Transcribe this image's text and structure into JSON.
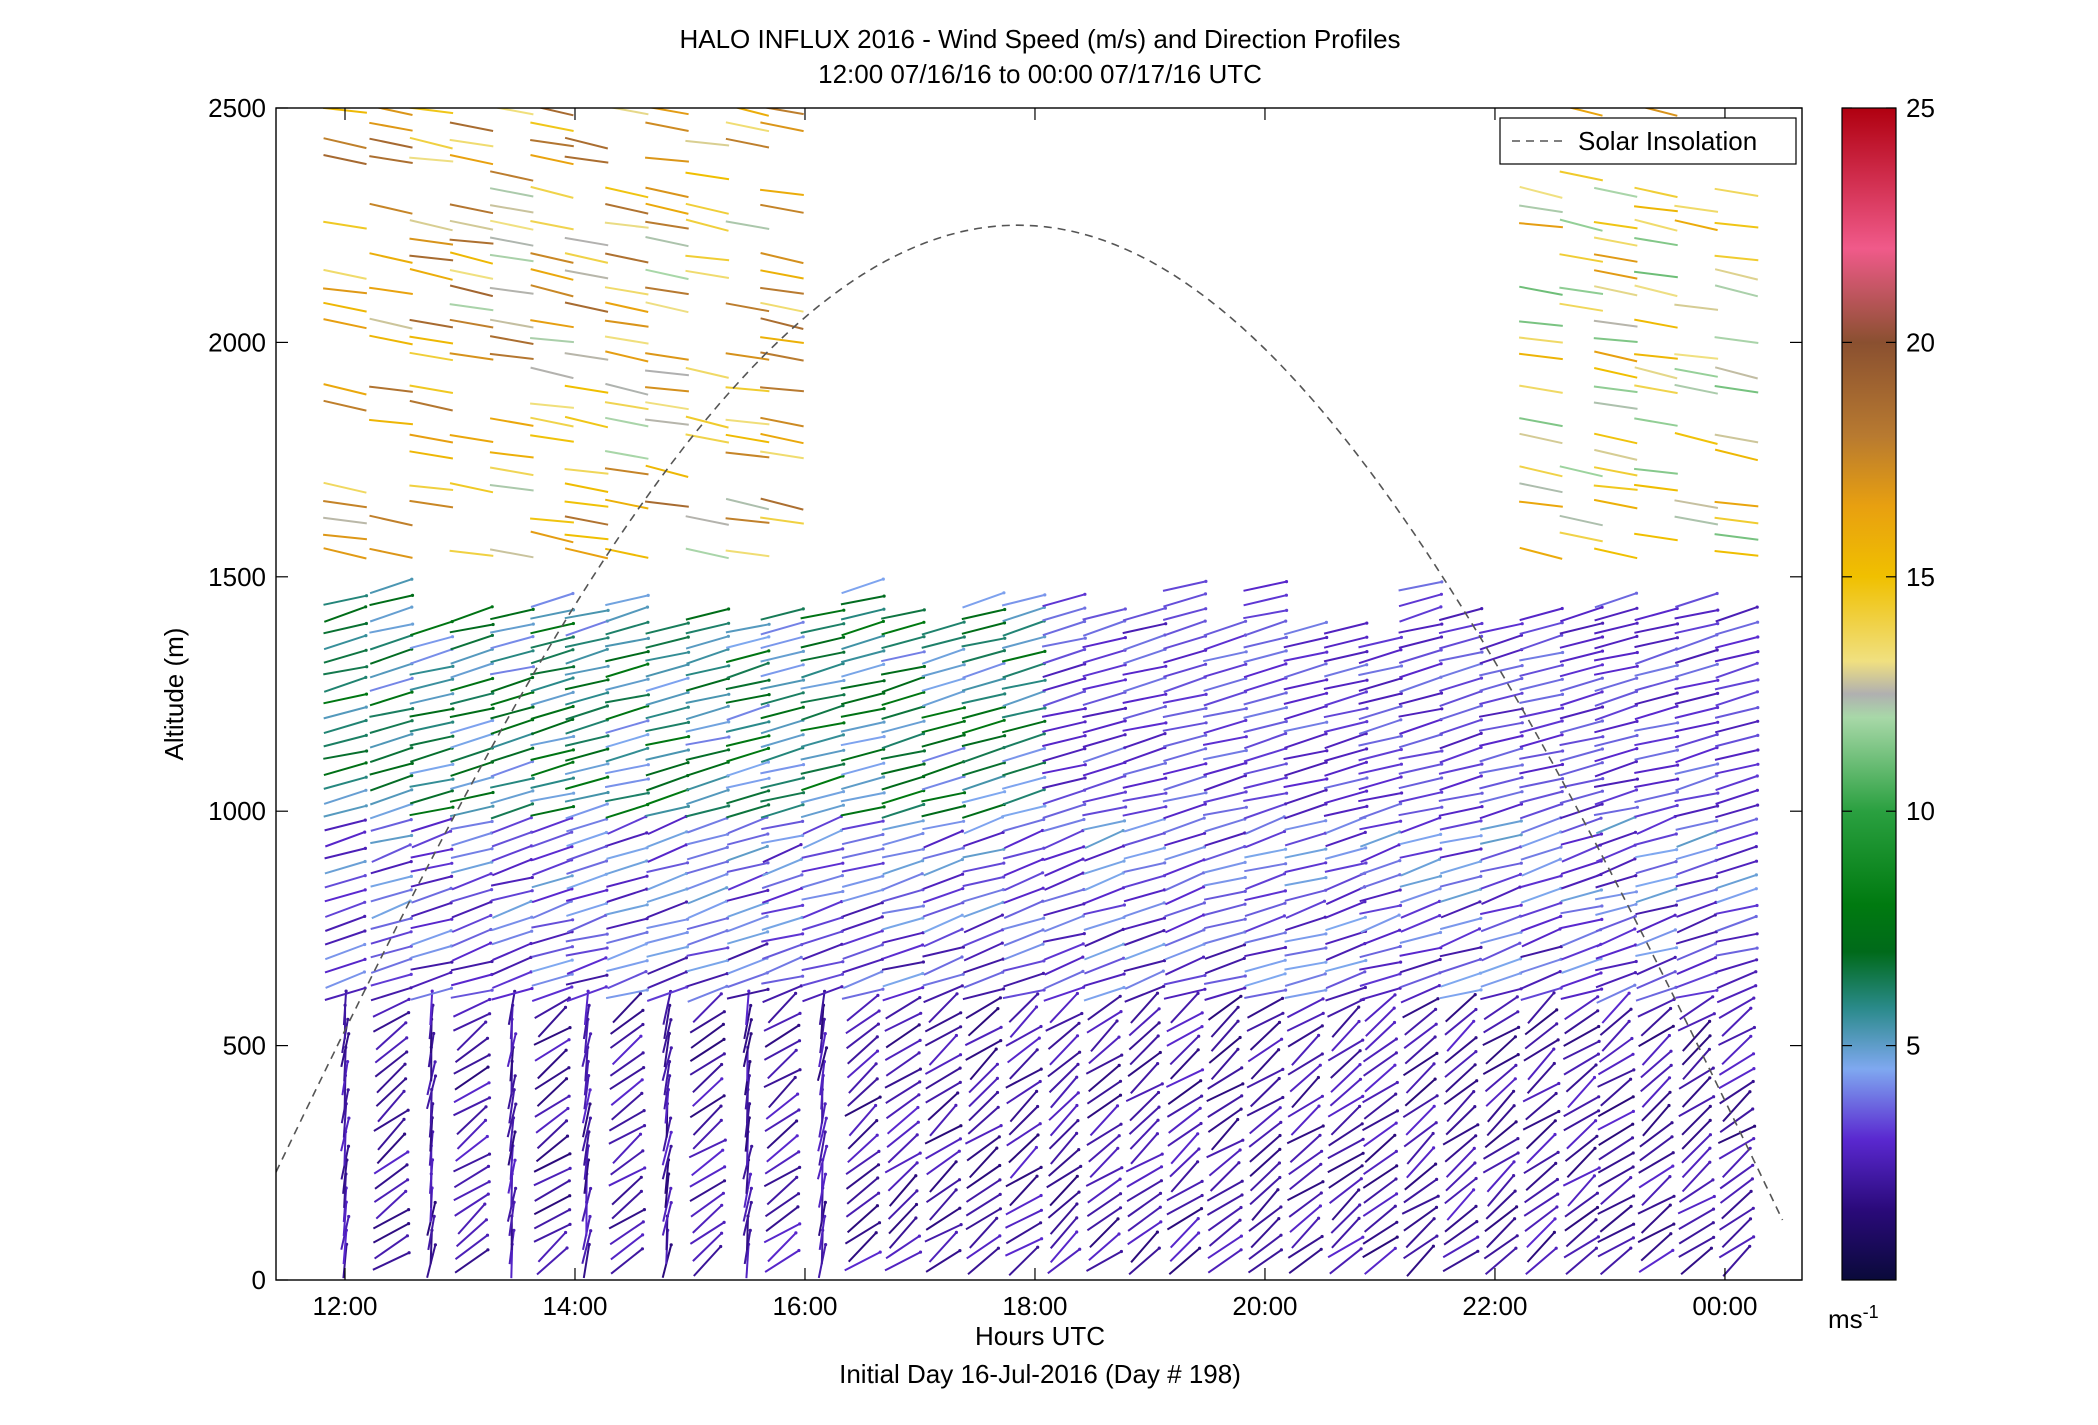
{
  "chart_data": {
    "type": "wind-barb-profile",
    "title": "HALO INFLUX 2016 - Wind Speed (m/s) and Direction Profiles",
    "subtitle": "12:00 07/16/16 to 00:00 07/17/16  UTC",
    "xlabel": "Hours UTC",
    "xlabel2": "Initial Day 16-Jul-2016 (Day # 198)",
    "ylabel": "Altitude (m)",
    "xlim_hours": [
      11.4,
      24.67
    ],
    "ylim": [
      0,
      2500
    ],
    "x_ticks": [
      {
        "value": 12,
        "label": "12:00"
      },
      {
        "value": 14,
        "label": "14:00"
      },
      {
        "value": 16,
        "label": "16:00"
      },
      {
        "value": 18,
        "label": "18:00"
      },
      {
        "value": 20,
        "label": "20:00"
      },
      {
        "value": 22,
        "label": "22:00"
      },
      {
        "value": 24,
        "label": "00:00"
      }
    ],
    "y_ticks": [
      {
        "value": 0,
        "label": "0"
      },
      {
        "value": 500,
        "label": "500"
      },
      {
        "value": 1000,
        "label": "1000"
      },
      {
        "value": 1500,
        "label": "1500"
      },
      {
        "value": 2000,
        "label": "2000"
      },
      {
        "value": 2500,
        "label": "2500"
      }
    ],
    "colorbar": {
      "range": [
        0,
        25
      ],
      "ticks": [
        {
          "value": 5,
          "label": "5"
        },
        {
          "value": 10,
          "label": "10"
        },
        {
          "value": 15,
          "label": "15"
        },
        {
          "value": 20,
          "label": "20"
        },
        {
          "value": 25,
          "label": "25"
        }
      ],
      "unit": "ms",
      "unit_sup": "-1",
      "stops": [
        {
          "v": 0,
          "c": "#0a0a3a"
        },
        {
          "v": 1.5,
          "c": "#2a0a7a"
        },
        {
          "v": 3,
          "c": "#5a28d0"
        },
        {
          "v": 4.5,
          "c": "#7fa8f0"
        },
        {
          "v": 5.8,
          "c": "#2a8a8a"
        },
        {
          "v": 7,
          "c": "#006a1a"
        },
        {
          "v": 8,
          "c": "#007a10"
        },
        {
          "v": 10,
          "c": "#2aa040"
        },
        {
          "v": 12,
          "c": "#a8d8a8"
        },
        {
          "v": 12.5,
          "c": "#b0b0b0"
        },
        {
          "v": 13.2,
          "c": "#f0e080"
        },
        {
          "v": 15,
          "c": "#f0c000"
        },
        {
          "v": 16.5,
          "c": "#e8a010"
        },
        {
          "v": 18,
          "c": "#b87a30"
        },
        {
          "v": 20,
          "c": "#8a5030"
        },
        {
          "v": 22,
          "c": "#f05a8a"
        },
        {
          "v": 25,
          "c": "#b00010"
        }
      ]
    },
    "legend": {
      "position": "top-right",
      "entries": [
        {
          "label": "Solar Insolation",
          "style": "dashed",
          "color": "#666666"
        }
      ]
    },
    "solar_insolation": {
      "peak_hour": 17.85,
      "peak_altitude_equiv": 2250,
      "half_width_hours": 6.9
    },
    "profile_times_hours": [
      12.0,
      12.4,
      12.75,
      13.1,
      13.45,
      13.8,
      14.1,
      14.45,
      14.8,
      15.15,
      15.5,
      15.8,
      16.15,
      16.5,
      16.85,
      17.2,
      17.55,
      17.9,
      18.25,
      18.6,
      18.95,
      19.3,
      19.65,
      20.0,
      20.35,
      20.7,
      21.0,
      21.35,
      21.7,
      22.05,
      22.4,
      22.75,
      23.05,
      23.4,
      23.75,
      24.1
    ],
    "profile_note": "wind vectors sampled every ~30 m altitude per profile; low level ~2-4 m/s rising to ~4-6 m/s near 1300 m; sparse upper-level vectors 10-20 m/s"
  }
}
